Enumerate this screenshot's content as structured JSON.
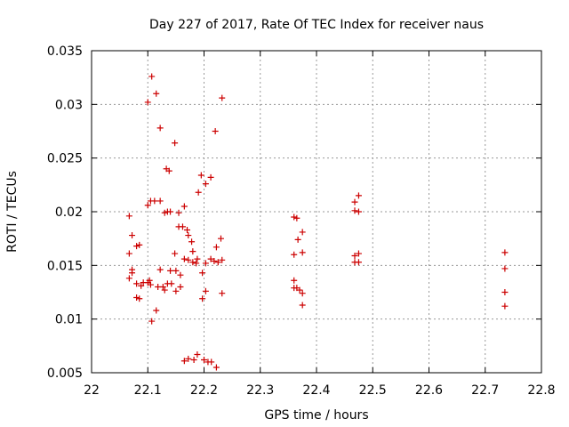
{
  "chart_data": {
    "type": "scatter",
    "title": "Day 227 of 2017, Rate Of TEC Index for receiver naus",
    "xlabel": "GPS time / hours",
    "ylabel": "ROTI / TECUs",
    "xlim": [
      22,
      22.8
    ],
    "ylim": [
      0.005,
      0.035
    ],
    "xticks": [
      "22",
      "22.1",
      "22.2",
      "22.3",
      "22.4",
      "22.5",
      "22.6",
      "22.7",
      "22.8"
    ],
    "yticks": [
      "0.005",
      "0.01",
      "0.015",
      "0.02",
      "0.025",
      "0.03",
      "0.035"
    ],
    "grid": true,
    "marker": "plus",
    "color": "#cc0000",
    "series": [
      {
        "points": [
          [
            22.067,
            0.0196
          ],
          [
            22.067,
            0.0161
          ],
          [
            22.067,
            0.0138
          ],
          [
            22.072,
            0.0178
          ],
          [
            22.072,
            0.0146
          ],
          [
            22.072,
            0.0143
          ],
          [
            22.08,
            0.0168
          ],
          [
            22.08,
            0.0133
          ],
          [
            22.08,
            0.012
          ],
          [
            22.085,
            0.0169
          ],
          [
            22.085,
            0.0119
          ],
          [
            22.088,
            0.0131
          ],
          [
            22.092,
            0.0134
          ],
          [
            22.1,
            0.0302
          ],
          [
            22.1,
            0.0206
          ],
          [
            22.1,
            0.0134
          ],
          [
            22.103,
            0.0136
          ],
          [
            22.105,
            0.021
          ],
          [
            22.105,
            0.0132
          ],
          [
            22.107,
            0.0326
          ],
          [
            22.107,
            0.0098
          ],
          [
            22.112,
            0.021
          ],
          [
            22.115,
            0.031
          ],
          [
            22.115,
            0.0108
          ],
          [
            22.118,
            0.013
          ],
          [
            22.122,
            0.0278
          ],
          [
            22.122,
            0.021
          ],
          [
            22.122,
            0.0146
          ],
          [
            22.127,
            0.013
          ],
          [
            22.13,
            0.0199
          ],
          [
            22.13,
            0.0127
          ],
          [
            22.133,
            0.024
          ],
          [
            22.135,
            0.02
          ],
          [
            22.135,
            0.0133
          ],
          [
            22.138,
            0.0238
          ],
          [
            22.14,
            0.02
          ],
          [
            22.14,
            0.0145
          ],
          [
            22.142,
            0.0133
          ],
          [
            22.148,
            0.0264
          ],
          [
            22.148,
            0.0161
          ],
          [
            22.15,
            0.0145
          ],
          [
            22.15,
            0.0126
          ],
          [
            22.155,
            0.0199
          ],
          [
            22.155,
            0.0186
          ],
          [
            22.158,
            0.0141
          ],
          [
            22.158,
            0.013
          ],
          [
            22.162,
            0.0186
          ],
          [
            22.165,
            0.0205
          ],
          [
            22.165,
            0.0156
          ],
          [
            22.165,
            0.0061
          ],
          [
            22.17,
            0.0183
          ],
          [
            22.172,
            0.0178
          ],
          [
            22.172,
            0.0155
          ],
          [
            22.172,
            0.0063
          ],
          [
            22.178,
            0.0172
          ],
          [
            22.18,
            0.0163
          ],
          [
            22.18,
            0.0153
          ],
          [
            22.182,
            0.0062
          ],
          [
            22.186,
            0.0152
          ],
          [
            22.188,
            0.0156
          ],
          [
            22.188,
            0.0067
          ],
          [
            22.19,
            0.0218
          ],
          [
            22.195,
            0.0234
          ],
          [
            22.197,
            0.0143
          ],
          [
            22.197,
            0.0119
          ],
          [
            22.2,
            0.0062
          ],
          [
            22.203,
            0.0226
          ],
          [
            22.203,
            0.0152
          ],
          [
            22.203,
            0.0126
          ],
          [
            22.207,
            0.006
          ],
          [
            22.212,
            0.0232
          ],
          [
            22.212,
            0.0156
          ],
          [
            22.213,
            0.006
          ],
          [
            22.218,
            0.0154
          ],
          [
            22.22,
            0.0275
          ],
          [
            22.222,
            0.0167
          ],
          [
            22.222,
            0.0055
          ],
          [
            22.225,
            0.0153
          ],
          [
            22.23,
            0.0175
          ],
          [
            22.232,
            0.0306
          ],
          [
            22.232,
            0.0155
          ],
          [
            22.232,
            0.0124
          ],
          [
            22.36,
            0.0195
          ],
          [
            22.36,
            0.016
          ],
          [
            22.36,
            0.0136
          ],
          [
            22.36,
            0.0129
          ],
          [
            22.365,
            0.0194
          ],
          [
            22.365,
            0.0129
          ],
          [
            22.367,
            0.0174
          ],
          [
            22.37,
            0.0127
          ],
          [
            22.375,
            0.0181
          ],
          [
            22.375,
            0.0162
          ],
          [
            22.375,
            0.0124
          ],
          [
            22.375,
            0.0113
          ],
          [
            22.468,
            0.0209
          ],
          [
            22.468,
            0.0201
          ],
          [
            22.468,
            0.0159
          ],
          [
            22.468,
            0.0153
          ],
          [
            22.475,
            0.0215
          ],
          [
            22.475,
            0.02
          ],
          [
            22.475,
            0.0161
          ],
          [
            22.475,
            0.0153
          ],
          [
            22.735,
            0.0162
          ],
          [
            22.735,
            0.0147
          ],
          [
            22.735,
            0.0125
          ],
          [
            22.735,
            0.0112
          ]
        ]
      }
    ]
  }
}
